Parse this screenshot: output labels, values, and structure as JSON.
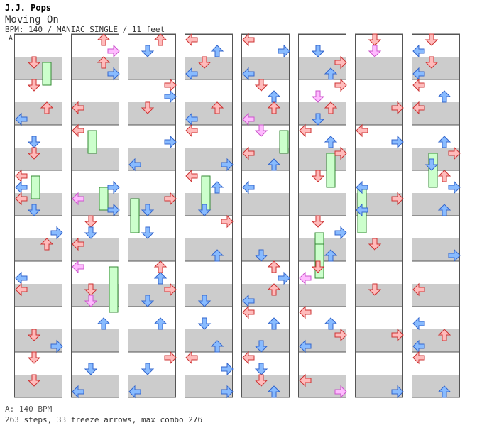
{
  "header": {
    "artist": "J.J. Pops",
    "title": "Moving On",
    "info": "BPM: 140 / MANIAC SINGLE / 11 feet"
  },
  "chart_marker": "A",
  "footer": {
    "bpm_legend": "A: 140 BPM",
    "stats": "263 steps, 33 freeze arrows, max combo 276"
  },
  "colors": {
    "band_gray": "#cccccc",
    "band_white": "#ffffff",
    "border": "#555555",
    "red_arrow": "#ffbbbb",
    "red_arrow_stroke": "#cc3333",
    "blue_arrow": "#88bbff",
    "blue_arrow_stroke": "#3366cc",
    "pink_arrow": "#ffbbff",
    "pink_arrow_stroke": "#cc55cc",
    "freeze": "#ccffcc",
    "freeze_stroke": "#338833"
  },
  "columns": [
    {
      "arrows": [
        [
          "L",
          24,
          "r"
        ],
        [
          "D",
          46,
          "r"
        ],
        [
          "R",
          80,
          "r"
        ],
        [
          "U",
          62,
          "r"
        ],
        [
          "L",
          24,
          "r"
        ],
        [
          "D",
          46,
          "r"
        ],
        [
          "R",
          80,
          "r"
        ],
        [
          "U",
          62,
          "r"
        ],
        [
          "L",
          24,
          "r"
        ]
      ],
      "arrow_rows": [
        0,
        1,
        2,
        3,
        4,
        5,
        6,
        7,
        8
      ],
      "freezes": []
    }
  ]
}
